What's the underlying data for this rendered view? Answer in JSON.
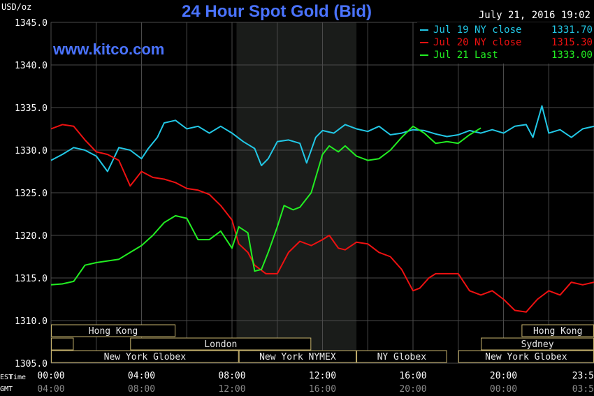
{
  "chart_data": {
    "type": "line",
    "title": "24 Hour Spot Gold (Bid)",
    "watermark": "www.kitco.com",
    "timestamp": "July 21, 2016 19:02",
    "ylabel": "USD/oz",
    "xlabel": "Time",
    "x_units": [
      "EST",
      "GMT"
    ],
    "ylim": [
      1305.0,
      1345.0
    ],
    "y_ticks": [
      "1345.0",
      "1340.0",
      "1335.0",
      "1330.0",
      "1325.0",
      "1320.0",
      "1315.0",
      "1310.0",
      "1305.0"
    ],
    "x_ticks_est": [
      "00:00",
      "04:00",
      "08:00",
      "12:00",
      "16:00",
      "20:00",
      "23:5"
    ],
    "x_ticks_gmt": [
      "04:00",
      "08:00",
      "12:00",
      "16:00",
      "20:00",
      "00:00",
      "03:5"
    ],
    "xlim_hours": [
      0,
      24
    ],
    "grid": true,
    "legend_position": "top-right",
    "highlight_band_hours": [
      8.2,
      13.5
    ],
    "colors": {
      "background": "#000000",
      "grid": "#4a4a4a",
      "title": "#4a73ff",
      "highlight": "#1a1c1a",
      "session_border": "#c8b46e"
    },
    "sessions": [
      {
        "label": "Hong Kong",
        "row": 0,
        "start_h": 0.0,
        "end_h": 5.5,
        "show_label": true
      },
      {
        "label": "Hong Kong",
        "row": 0,
        "start_h": 20.8,
        "end_h": 24.0,
        "show_label": true
      },
      {
        "label": "",
        "row": 1,
        "start_h": 0.0,
        "end_h": 1.0,
        "show_label": false
      },
      {
        "label": "London",
        "row": 1,
        "start_h": 3.5,
        "end_h": 11.5,
        "show_label": true
      },
      {
        "label": "Sydney",
        "row": 1,
        "start_h": 19.0,
        "end_h": 24.0,
        "show_label": true
      },
      {
        "label": "New York Globex",
        "row": 2,
        "start_h": 0.0,
        "end_h": 8.3,
        "show_label": true
      },
      {
        "label": "New York NYMEX",
        "row": 2,
        "start_h": 8.3,
        "end_h": 13.5,
        "show_label": true
      },
      {
        "label": "NY Globex",
        "row": 2,
        "start_h": 13.5,
        "end_h": 17.5,
        "show_label": true
      },
      {
        "label": "New York Globex",
        "row": 2,
        "start_h": 18.0,
        "end_h": 24.0,
        "show_label": true
      }
    ],
    "series": [
      {
        "name": "Jul 19 NY close",
        "value_label": "1331.70",
        "color": "#22c8e6",
        "x": [
          0,
          0.5,
          1,
          1.5,
          2,
          2.5,
          3,
          3.5,
          4,
          4.3,
          4.7,
          5,
          5.5,
          6,
          6.5,
          7,
          7.5,
          8,
          8.5,
          9,
          9.3,
          9.6,
          10,
          10.5,
          11,
          11.3,
          11.7,
          12,
          12.5,
          13,
          13.5,
          14,
          14.5,
          15,
          15.5,
          16,
          16.5,
          17,
          17.5,
          18,
          18.5,
          19,
          19.5,
          20,
          20.5,
          21,
          21.3,
          21.7,
          22,
          22.5,
          23,
          23.5,
          24
        ],
        "y": [
          1328.8,
          1329.5,
          1330.3,
          1330.0,
          1329.3,
          1327.5,
          1330.3,
          1330.0,
          1329.0,
          1330.2,
          1331.5,
          1333.2,
          1333.5,
          1332.5,
          1332.8,
          1332.0,
          1332.8,
          1332.0,
          1331.0,
          1330.2,
          1328.2,
          1329.0,
          1331.0,
          1331.2,
          1330.8,
          1328.5,
          1331.5,
          1332.3,
          1332.0,
          1333.0,
          1332.5,
          1332.2,
          1332.8,
          1331.8,
          1332.0,
          1332.4,
          1332.3,
          1331.9,
          1331.6,
          1331.8,
          1332.3,
          1332.0,
          1332.4,
          1332.0,
          1332.8,
          1333.0,
          1331.5,
          1335.2,
          1332.0,
          1332.4,
          1331.5,
          1332.5,
          1332.8
        ]
      },
      {
        "name": "Jul 20 NY close",
        "value_label": "1315.30",
        "color": "#ee1111",
        "x": [
          0,
          0.5,
          1,
          1.5,
          2,
          2.5,
          3,
          3.5,
          4,
          4.5,
          5,
          5.5,
          6,
          6.5,
          7,
          7.5,
          8,
          8.3,
          8.7,
          9,
          9.5,
          10,
          10.5,
          11,
          11.5,
          12,
          12.3,
          12.7,
          13,
          13.5,
          14,
          14.5,
          15,
          15.5,
          16,
          16.3,
          16.7,
          17,
          17.5,
          18,
          18.5,
          19,
          19.5,
          20,
          20.5,
          21,
          21.5,
          22,
          22.5,
          23,
          23.5,
          24
        ],
        "y": [
          1332.5,
          1333.0,
          1332.8,
          1331.2,
          1329.8,
          1329.5,
          1328.8,
          1325.8,
          1327.5,
          1326.8,
          1326.6,
          1326.2,
          1325.5,
          1325.3,
          1324.8,
          1323.5,
          1321.8,
          1319.0,
          1318.0,
          1316.5,
          1315.5,
          1315.5,
          1318.0,
          1319.3,
          1318.8,
          1319.5,
          1320.0,
          1318.5,
          1318.3,
          1319.2,
          1319.0,
          1318.0,
          1317.5,
          1316.0,
          1313.5,
          1313.8,
          1315.0,
          1315.5,
          1315.5,
          1315.5,
          1313.5,
          1313.0,
          1313.5,
          1312.5,
          1311.2,
          1311.0,
          1312.5,
          1313.5,
          1313.0,
          1314.5,
          1314.2,
          1314.5
        ]
      },
      {
        "name": "Jul 21 Last",
        "value_label": "1333.00",
        "color": "#22ee22",
        "x": [
          0,
          0.5,
          1,
          1.5,
          2,
          2.5,
          3,
          3.5,
          4,
          4.5,
          5,
          5.5,
          6,
          6.5,
          7,
          7.5,
          8,
          8.3,
          8.7,
          9,
          9.3,
          9.6,
          10,
          10.3,
          10.7,
          11,
          11.5,
          12,
          12.3,
          12.7,
          13,
          13.5,
          14,
          14.5,
          15,
          15.5,
          16,
          16.5,
          17,
          17.5,
          18,
          18.5,
          19
        ],
        "y": [
          1314.2,
          1314.3,
          1314.6,
          1316.5,
          1316.8,
          1317.0,
          1317.2,
          1318.0,
          1318.8,
          1320.0,
          1321.5,
          1322.3,
          1322.0,
          1319.5,
          1319.5,
          1320.5,
          1318.5,
          1321.0,
          1320.3,
          1315.8,
          1316.0,
          1318.0,
          1321.0,
          1323.5,
          1323.0,
          1323.3,
          1325.0,
          1329.5,
          1330.5,
          1329.8,
          1330.5,
          1329.3,
          1328.8,
          1329.0,
          1330.0,
          1331.5,
          1332.8,
          1332.0,
          1330.8,
          1331.0,
          1330.8,
          1331.8,
          1332.6
        ]
      }
    ]
  }
}
